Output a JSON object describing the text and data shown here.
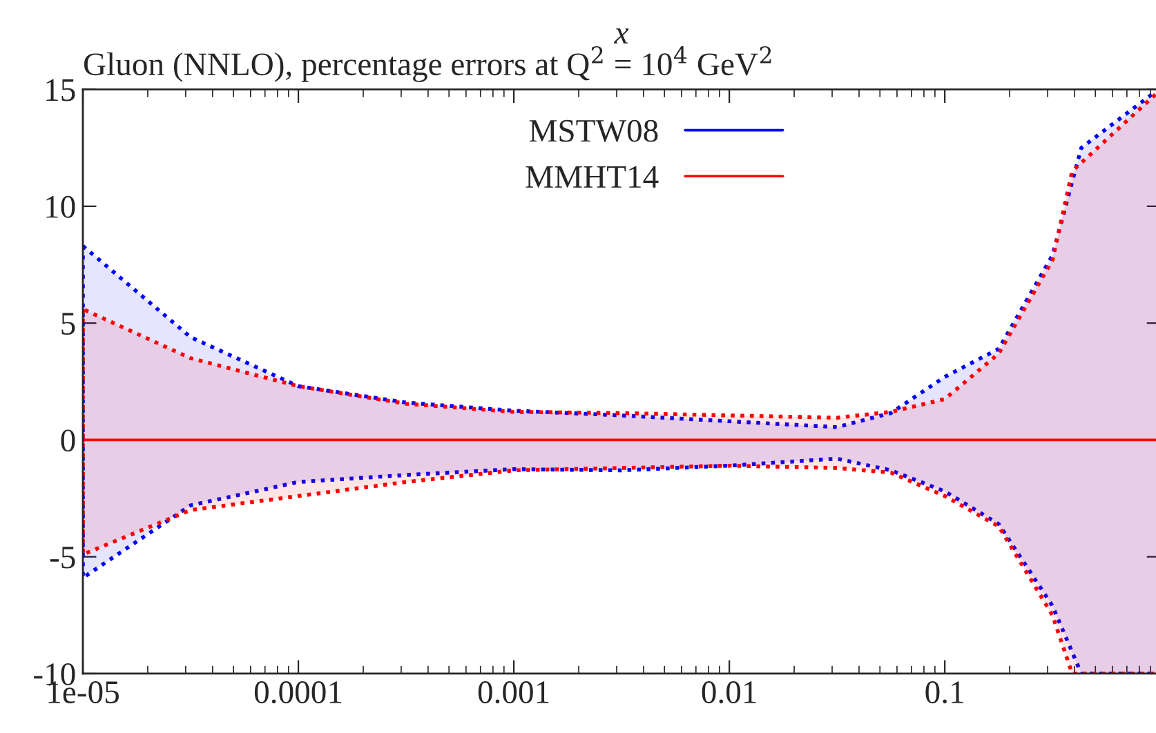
{
  "chart_data": {
    "type": "line",
    "title": "Gluon (NNLO), percentage errors at Q$^{2}$ = 10$^{4}$ GeV$^{2}$",
    "xlabel": "x",
    "log": "x",
    "xlim": [
      1e-05,
      1
    ],
    "xticks": [
      1e-05,
      0.0001,
      0.001,
      0.01,
      0.1
    ],
    "ylim": [
      -10,
      15
    ],
    "yticks": [
      -10,
      -5,
      0,
      5,
      10,
      15
    ],
    "grid": false,
    "legend": "top",
    "series": [
      {
        "name": "MSTW08",
        "color": "#0000ff",
        "x": [
          1e-05,
          3.16e-05,
          0.0001,
          0.000316,
          0.001,
          0.00316,
          0.01,
          0.0316,
          0.0562,
          0.1,
          0.178,
          0.316,
          0.43,
          0.98
        ],
        "values": [
          null,
          null,
          null,
          null,
          null,
          null,
          null,
          null,
          null,
          null,
          null,
          null,
          null,
          null
        ],
        "upper": [
          8.3,
          4.4,
          2.3,
          1.6,
          1.25,
          1.05,
          0.8,
          0.55,
          1.15,
          2.7,
          3.9,
          7.9,
          12.5,
          15
        ],
        "lower": [
          -5.9,
          -2.8,
          -1.8,
          -1.5,
          -1.25,
          -1.3,
          -1.1,
          -0.8,
          -1.3,
          -2.2,
          -3.6,
          -7.1,
          -10,
          -10
        ]
      },
      {
        "name": "MMHT14",
        "color": "#ff0000",
        "x": [
          1e-05,
          3.16e-05,
          0.0001,
          0.000316,
          0.001,
          0.00316,
          0.01,
          0.0316,
          0.0562,
          0.1,
          0.178,
          0.316,
          0.39,
          0.98
        ],
        "values": [
          0,
          0,
          0,
          0,
          0,
          0,
          0,
          0,
          0,
          0,
          0,
          0,
          0,
          0
        ],
        "upper": [
          5.6,
          3.5,
          2.3,
          1.55,
          1.2,
          1.15,
          1.05,
          0.95,
          1.2,
          1.75,
          3.7,
          7.7,
          11.5,
          14.9
        ],
        "lower": [
          -4.9,
          -3.0,
          -2.4,
          -1.8,
          -1.3,
          -1.2,
          -1.1,
          -1.2,
          -1.4,
          -2.4,
          -3.7,
          -7.5,
          -10,
          -10
        ]
      }
    ]
  }
}
